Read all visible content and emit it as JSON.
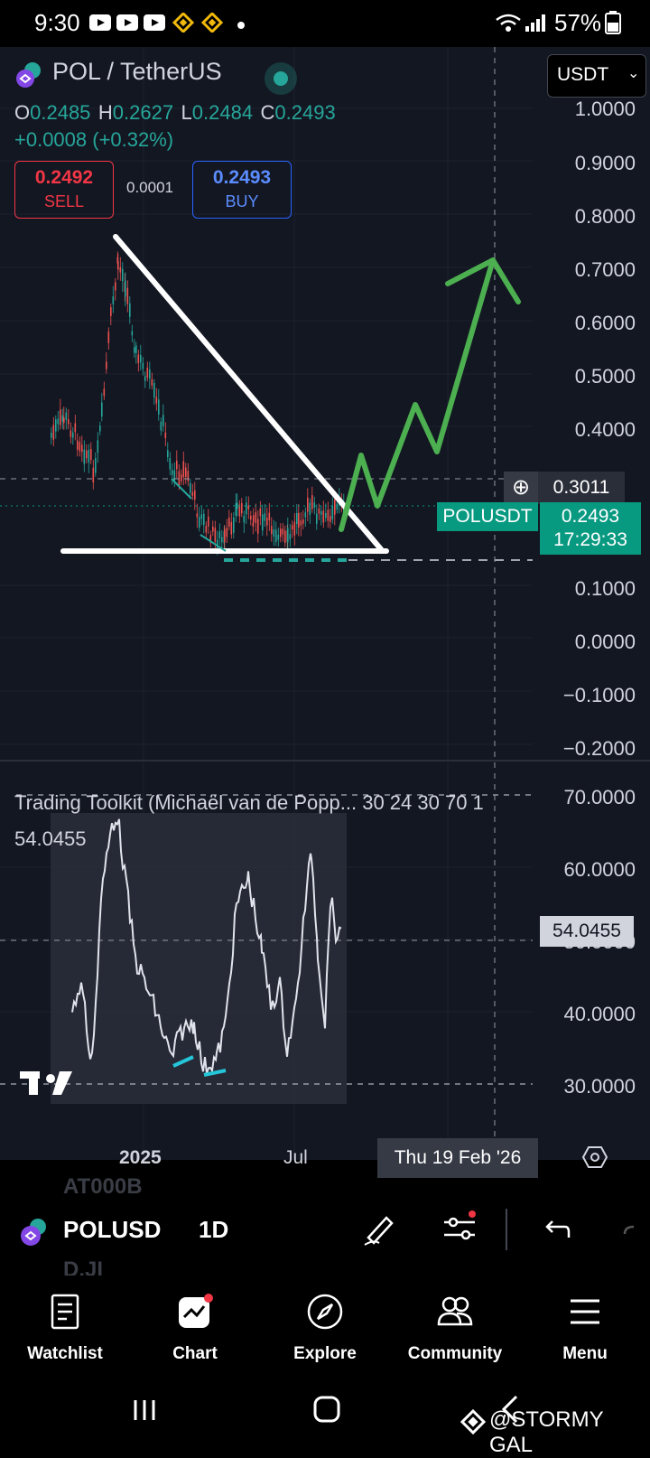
{
  "status_bar": {
    "time": "9:30",
    "battery": "57%"
  },
  "header": {
    "pair": "POL / TetherUS",
    "ohlc": {
      "o_key": "O",
      "o": "0.2485",
      "h_key": "H",
      "h": "0.2627",
      "l_key": "L",
      "l": "0.2484",
      "c_key": "C",
      "c": "0.2493"
    },
    "change": "+0.0008 (+0.32%)",
    "sell_price": "0.2492",
    "sell_label": "SELL",
    "spread": "0.0001",
    "buy_price": "0.2493",
    "buy_label": "BUY",
    "currency": "USDT"
  },
  "price_axis": [
    "1.0000",
    "0.9000",
    "0.8000",
    "0.7000",
    "0.6000",
    "0.5000",
    "0.4000",
    "0.1000",
    "0.0000",
    "−0.1000",
    "−0.2000"
  ],
  "crosshair_price": "0.3011",
  "symbol_tag": "POLUSDT",
  "last_price": "0.2493",
  "countdown": "17:29:33",
  "indicator": {
    "title": "Trading Toolkit (Michaël van de Popp... 30 24 30 70 1",
    "value": "54.0455",
    "axis": [
      "70.0000",
      "60.0000",
      "50.0000",
      "40.0000",
      "30.0000"
    ],
    "tag": "54.0455"
  },
  "time_axis": {
    "label_2025": "2025",
    "label_jul": "Jul",
    "crosshair_date": "Thu 19 Feb '26"
  },
  "toolbar": {
    "symbol": "POLUSD",
    "interval": "1D",
    "ghost_top": "AT000B",
    "ghost_bottom": "D.JI"
  },
  "nav": [
    {
      "label": "Watchlist",
      "icon": "watchlist-icon"
    },
    {
      "label": "Chart",
      "icon": "chart-icon"
    },
    {
      "label": "Explore",
      "icon": "compass-icon"
    },
    {
      "label": "Community",
      "icon": "community-icon"
    },
    {
      "label": "Menu",
      "icon": "menu-icon"
    }
  ],
  "watermark": "@STORMY GAL",
  "colors": {
    "background": "#131722",
    "up": "#26a69a",
    "down": "#ef5350",
    "sell": "#f23645",
    "buy": "#2962ff",
    "projection": "#4caf50",
    "tag": "#089981"
  }
}
